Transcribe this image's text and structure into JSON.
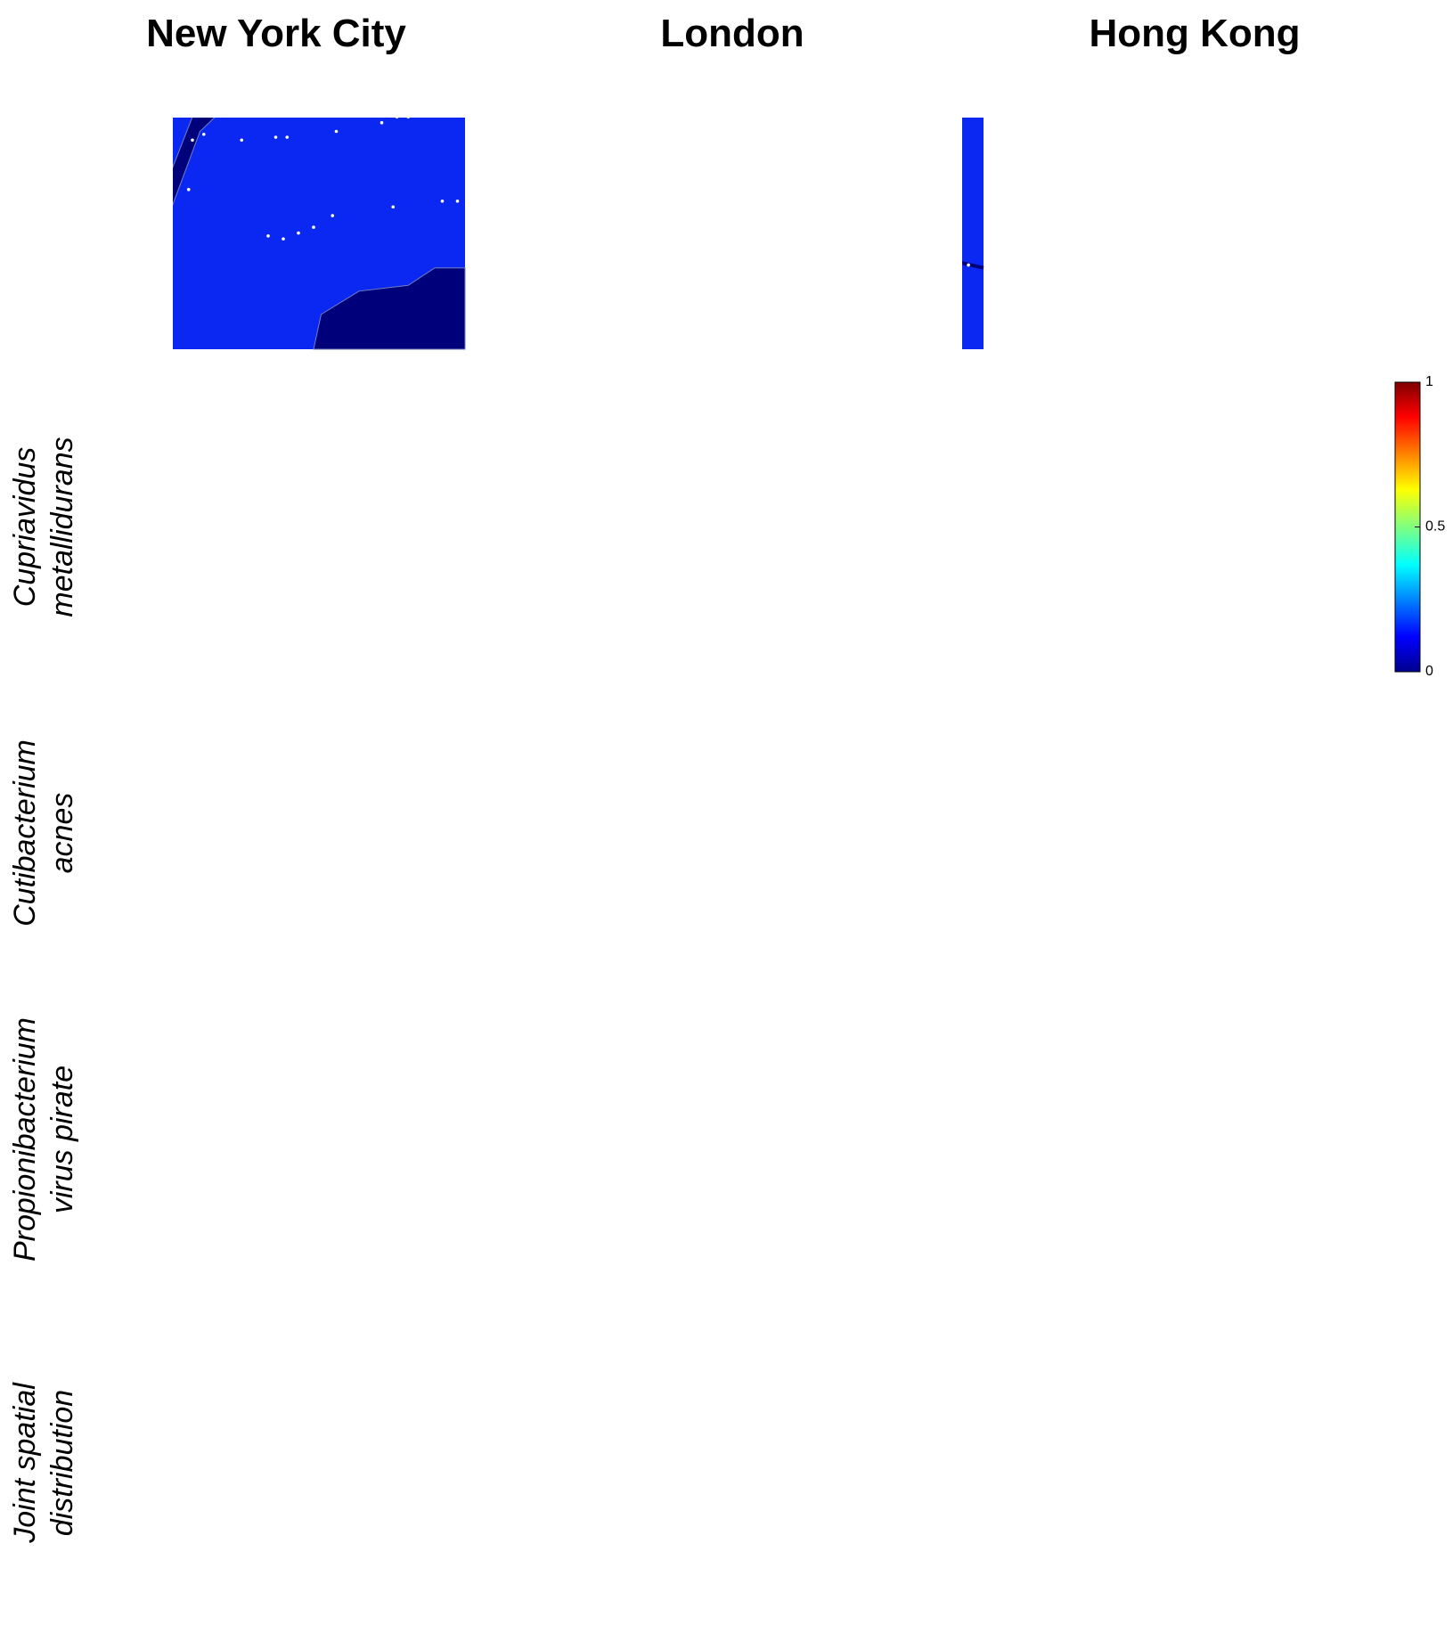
{
  "columns": [
    "New York City",
    "London",
    "Hong Kong"
  ],
  "rows": [
    {
      "lines": [
        "Cupriavidus",
        "metallidurans"
      ]
    },
    {
      "lines": [
        "Cutibacterium",
        "acnes"
      ]
    },
    {
      "lines": [
        "Propionibacterium",
        "virus pirate"
      ]
    },
    {
      "lines": [
        "Joint spatial",
        "distribution"
      ]
    }
  ],
  "colorbar": {
    "ticks": [
      0,
      0.5,
      1
    ]
  }
}
